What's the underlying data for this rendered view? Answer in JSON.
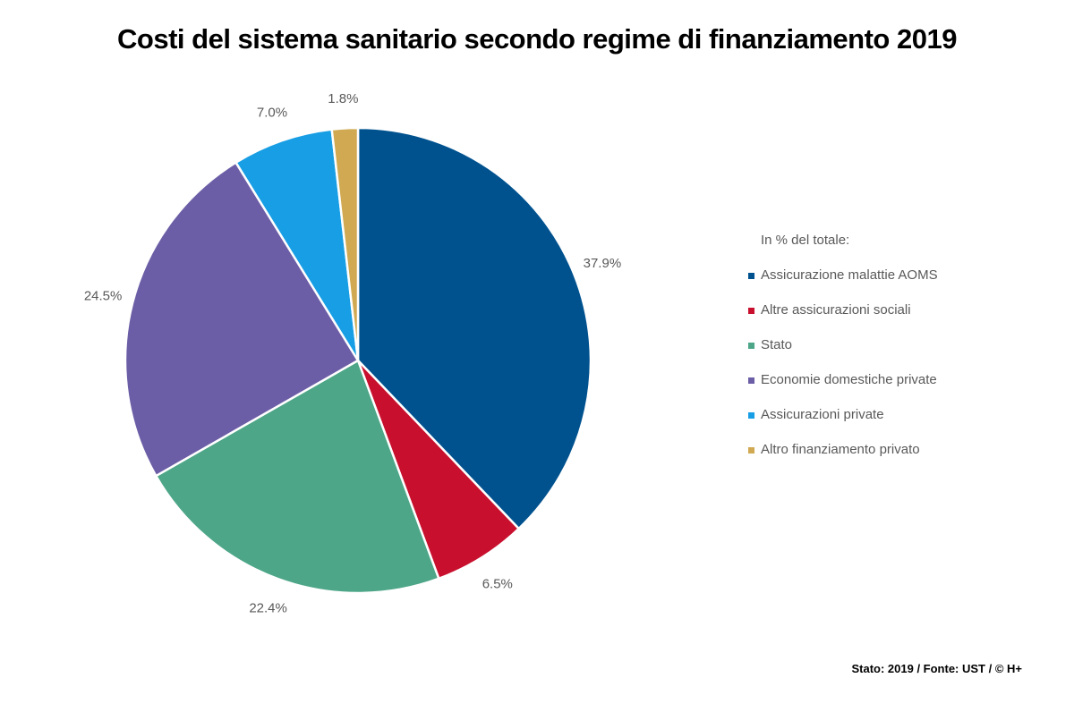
{
  "page": {
    "title": "Costi del sistema sanitario secondo regime di finanziamento 2019",
    "source": "Stato: 2019 / Fonte: UST / © H+"
  },
  "chart_data": {
    "type": "pie",
    "title": "Costi del sistema sanitario secondo regime di finanziamento 2019",
    "legend_title": "In % del totale:",
    "legend_position": "right",
    "unit": "% del totale",
    "start_angle_deg": 0,
    "direction": "clockwise",
    "label_color": "#595959",
    "slice_border_color": "#ffffff",
    "slices": [
      {
        "label": "Assicurazione malattie AOMS",
        "value": 37.9,
        "pct_label": "37.9%",
        "color": "#00528F"
      },
      {
        "label": "Altre assicurazioni sociali",
        "value": 6.5,
        "pct_label": "6.5%",
        "color": "#C8102E"
      },
      {
        "label": "Stato",
        "value": 22.4,
        "pct_label": "22.4%",
        "color": "#4DA687"
      },
      {
        "label": "Economie domestiche private",
        "value": 24.5,
        "pct_label": "24.5%",
        "color": "#6C5EA6"
      },
      {
        "label": "Assicurazioni private",
        "value": 7.0,
        "pct_label": "7.0%",
        "color": "#189EE4"
      },
      {
        "label": "Altro finanziamento privato",
        "value": 1.8,
        "pct_label": "1.8%",
        "color": "#D0A952"
      }
    ],
    "source": "Stato: 2019 / Fonte: UST / © H+"
  }
}
